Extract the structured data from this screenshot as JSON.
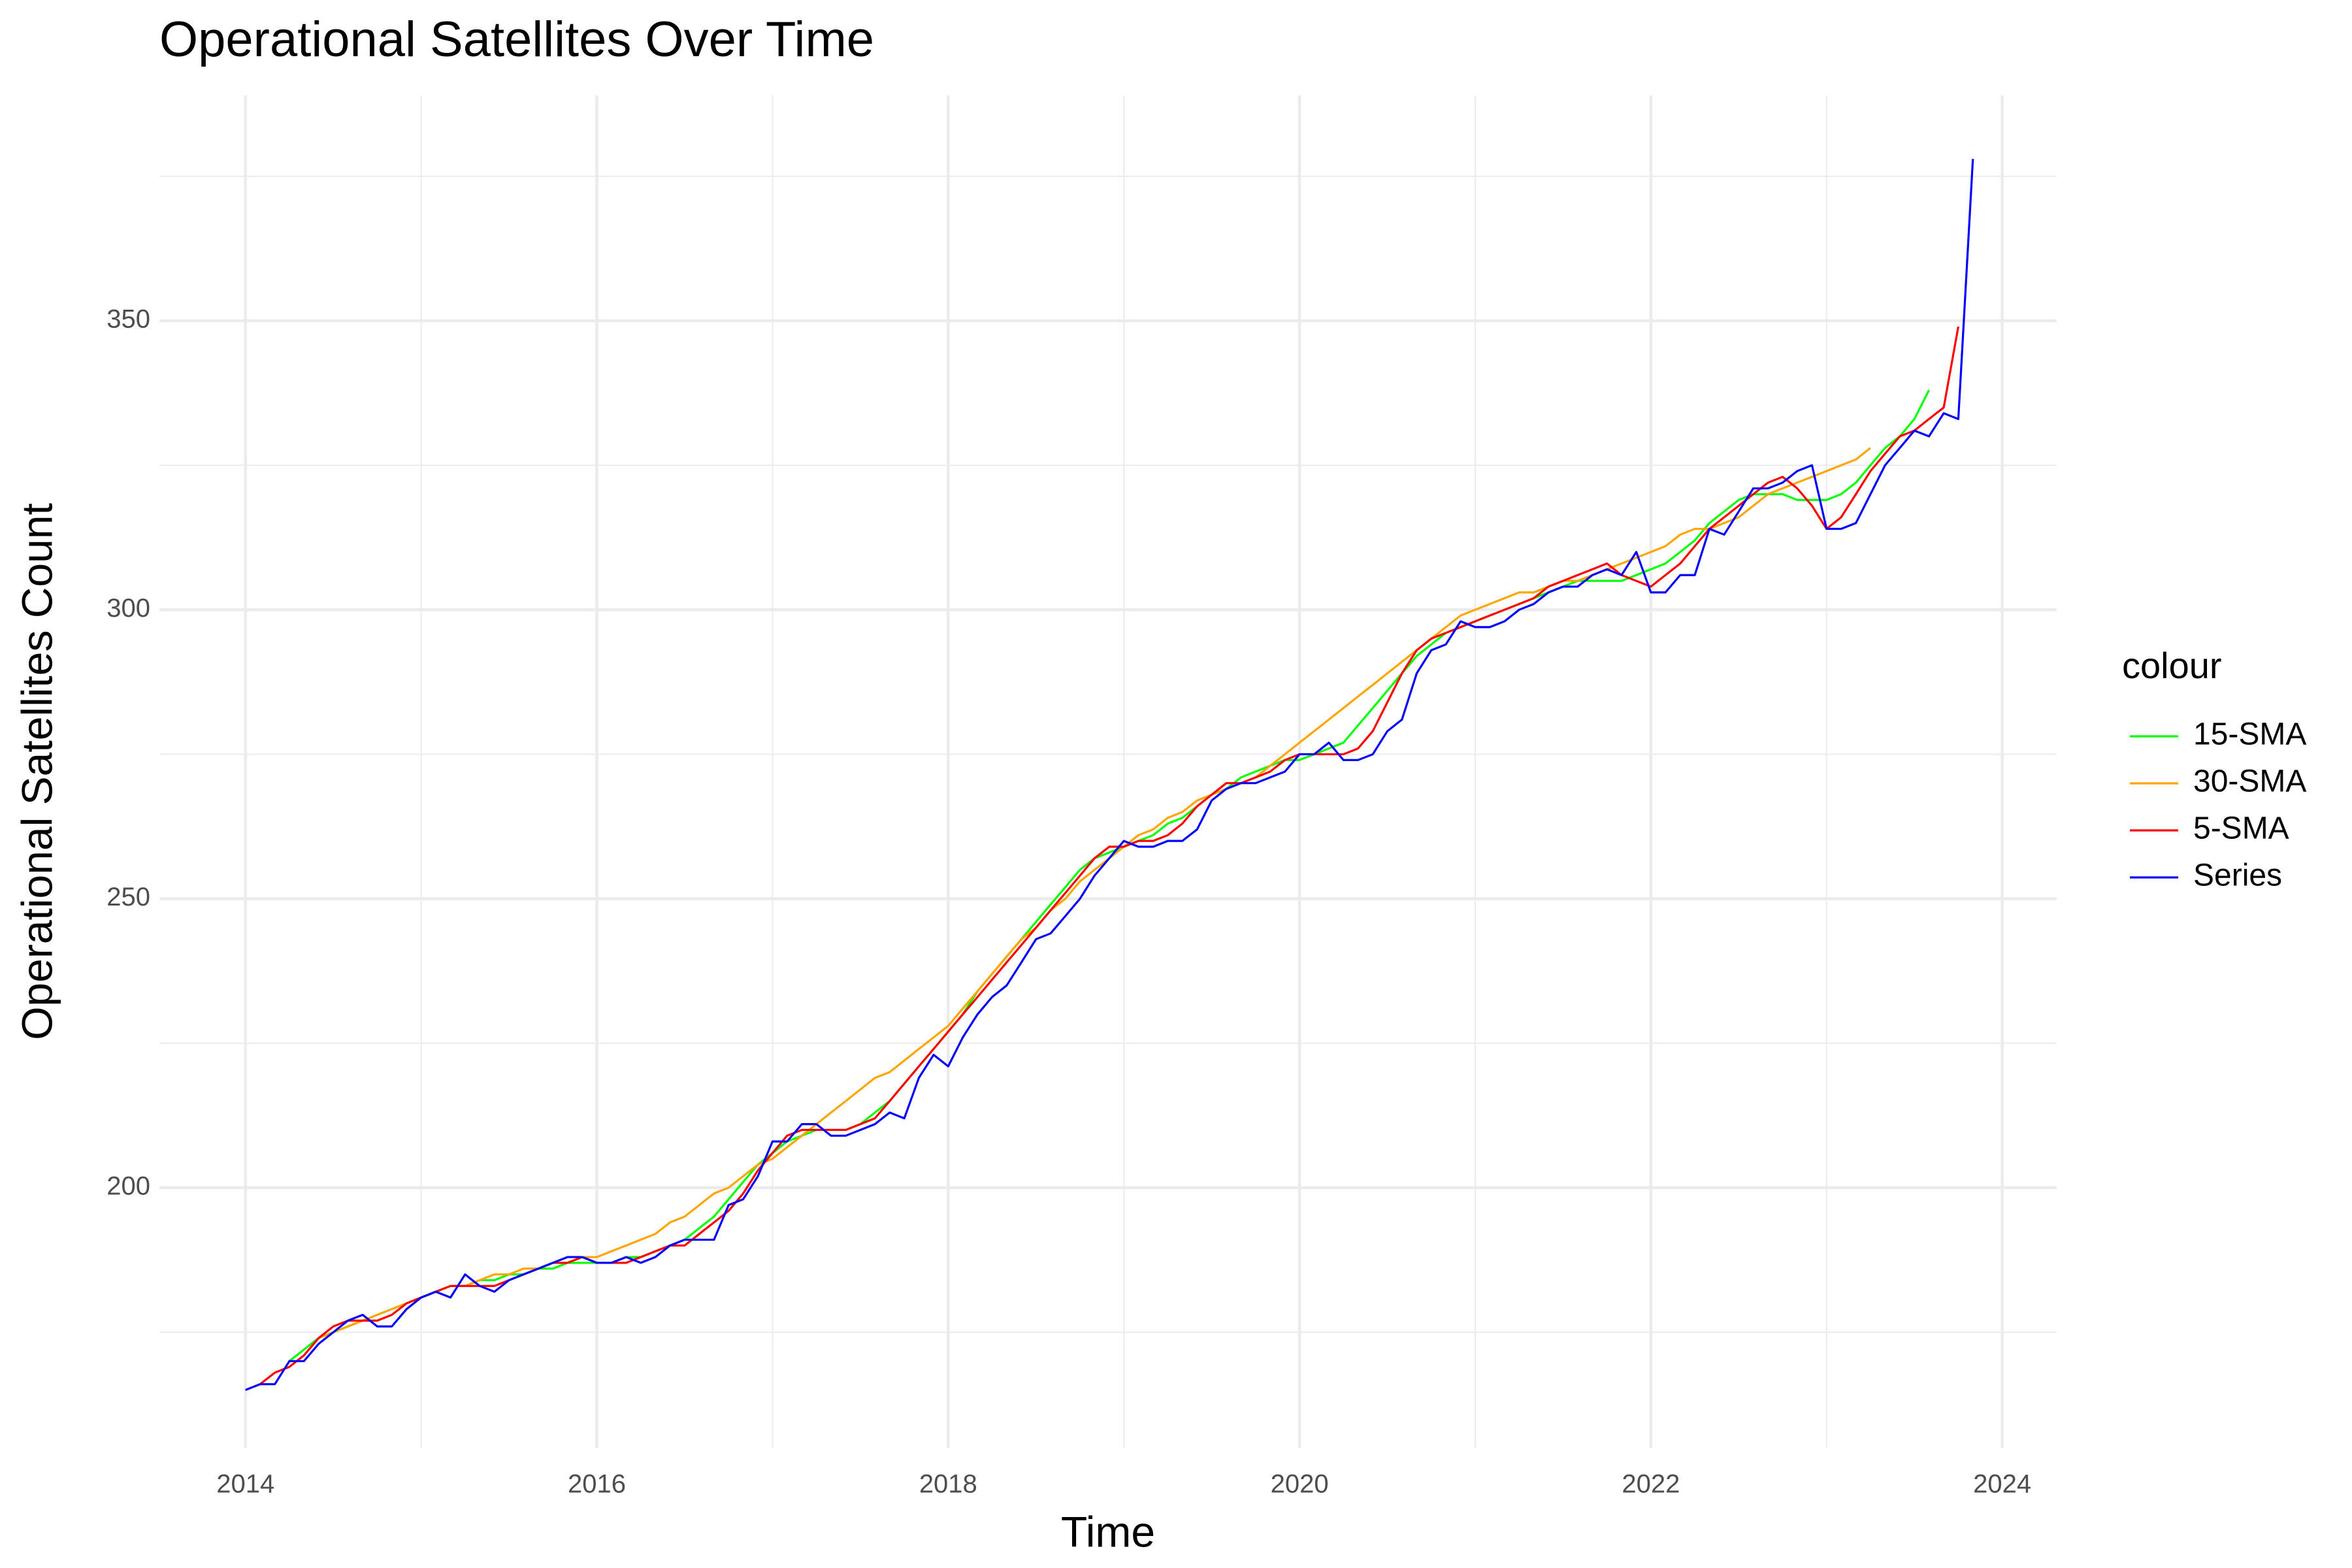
{
  "chart_data": {
    "type": "line",
    "title": "Operational Satellites Over Time",
    "x_label": "Time",
    "y_label": "Operational Satellites Count",
    "legend_title": "colour",
    "legend_position": "right",
    "grid": true,
    "xlim": [
      2013.51,
      2024.31
    ],
    "xticks": [
      2014,
      2016,
      2018,
      2020,
      2022,
      2024
    ],
    "minor_xticks": [
      2015,
      2017,
      2019,
      2021,
      2023
    ],
    "ylim": [
      155,
      389
    ],
    "yticks": [
      200,
      250,
      300,
      350
    ],
    "minor_yticks": [
      175,
      225,
      275,
      325,
      375
    ],
    "x": [
      2014,
      2014.083,
      2014.167,
      2014.25,
      2014.333,
      2014.417,
      2014.5,
      2014.583,
      2014.667,
      2014.75,
      2014.833,
      2014.917,
      2015,
      2015.083,
      2015.167,
      2015.25,
      2015.333,
      2015.417,
      2015.5,
      2015.583,
      2015.667,
      2015.75,
      2015.833,
      2015.917,
      2016,
      2016.083,
      2016.167,
      2016.25,
      2016.333,
      2016.417,
      2016.5,
      2016.583,
      2016.667,
      2016.75,
      2016.833,
      2016.917,
      2017,
      2017.083,
      2017.167,
      2017.25,
      2017.333,
      2017.417,
      2017.5,
      2017.583,
      2017.667,
      2017.75,
      2017.833,
      2017.917,
      2018,
      2018.083,
      2018.167,
      2018.25,
      2018.333,
      2018.417,
      2018.5,
      2018.583,
      2018.667,
      2018.75,
      2018.833,
      2018.917,
      2019,
      2019.083,
      2019.167,
      2019.25,
      2019.333,
      2019.417,
      2019.5,
      2019.583,
      2019.667,
      2019.75,
      2019.833,
      2019.917,
      2020,
      2020.083,
      2020.167,
      2020.25,
      2020.333,
      2020.417,
      2020.5,
      2020.583,
      2020.667,
      2020.75,
      2020.833,
      2020.917,
      2021,
      2021.083,
      2021.167,
      2021.25,
      2021.333,
      2021.417,
      2021.5,
      2021.583,
      2021.667,
      2021.75,
      2021.833,
      2021.917,
      2022,
      2022.083,
      2022.167,
      2022.25,
      2022.333,
      2022.417,
      2022.5,
      2022.583,
      2022.667,
      2022.75,
      2022.833,
      2022.917,
      2023,
      2023.083,
      2023.167,
      2023.25,
      2023.333,
      2023.417,
      2023.5,
      2023.583,
      2023.667,
      2023.75,
      2023.833
    ],
    "series": [
      {
        "name": "15-SMA",
        "color": "#00ff00",
        "values": [
          null,
          null,
          null,
          170,
          172,
          174,
          175,
          176,
          177,
          178,
          179,
          180,
          181,
          182,
          183,
          183,
          184,
          184,
          185,
          185,
          186,
          186,
          187,
          187,
          187,
          187,
          188,
          188,
          189,
          190,
          191,
          193,
          195,
          198,
          201,
          204,
          206,
          208,
          209,
          210,
          210,
          210,
          211,
          213,
          215,
          218,
          221,
          224,
          227,
          230,
          234,
          237,
          240,
          243,
          246,
          249,
          252,
          255,
          257,
          258,
          259,
          260,
          261,
          263,
          264,
          266,
          268,
          269,
          271,
          272,
          273,
          274,
          274,
          275,
          276,
          277,
          280,
          283,
          286,
          289,
          292,
          294,
          296,
          297,
          298,
          299,
          300,
          301,
          302,
          303,
          304,
          305,
          305,
          305,
          305,
          306,
          307,
          308,
          310,
          312,
          315,
          317,
          319,
          320,
          320,
          320,
          319,
          319,
          319,
          320,
          322,
          325,
          328,
          330,
          333,
          338,
          null,
          null,
          null
        ]
      },
      {
        "name": "30-SMA",
        "color": "#ffa500",
        "values": [
          null,
          null,
          null,
          null,
          null,
          174,
          175,
          176,
          177,
          178,
          179,
          180,
          181,
          182,
          183,
          183,
          184,
          185,
          185,
          186,
          186,
          187,
          187,
          188,
          188,
          189,
          190,
          191,
          192,
          194,
          195,
          197,
          199,
          200,
          202,
          204,
          205,
          207,
          209,
          211,
          213,
          215,
          217,
          219,
          220,
          222,
          224,
          226,
          228,
          231,
          234,
          237,
          240,
          243,
          245,
          248,
          250,
          253,
          255,
          257,
          259,
          261,
          262,
          264,
          265,
          267,
          268,
          269,
          270,
          271,
          273,
          275,
          277,
          279,
          281,
          283,
          285,
          287,
          289,
          291,
          293,
          295,
          297,
          299,
          300,
          301,
          302,
          303,
          303,
          304,
          305,
          305,
          306,
          307,
          308,
          309,
          310,
          311,
          313,
          314,
          314,
          315,
          316,
          318,
          320,
          321,
          322,
          323,
          324,
          325,
          326,
          328,
          null,
          null,
          null,
          null,
          null,
          null,
          null
        ]
      },
      {
        "name": "5-SMA",
        "color": "#ff0000",
        "values": [
          165,
          166,
          168,
          169,
          171,
          174,
          176,
          177,
          177,
          177,
          178,
          180,
          181,
          182,
          183,
          183,
          183,
          183,
          184,
          185,
          186,
          187,
          187,
          188,
          187,
          187,
          187,
          188,
          189,
          190,
          190,
          192,
          194,
          196,
          199,
          203,
          206,
          209,
          210,
          210,
          210,
          210,
          211,
          212,
          215,
          218,
          221,
          224,
          227,
          230,
          233,
          236,
          239,
          242,
          245,
          248,
          251,
          254,
          257,
          259,
          259,
          260,
          260,
          261,
          263,
          266,
          268,
          270,
          270,
          271,
          272,
          274,
          275,
          275,
          275,
          275,
          276,
          279,
          284,
          289,
          293,
          295,
          296,
          297,
          298,
          299,
          300,
          301,
          302,
          304,
          305,
          306,
          307,
          308,
          306,
          305,
          304,
          306,
          308,
          311,
          314,
          316,
          318,
          320,
          322,
          323,
          321,
          318,
          314,
          316,
          320,
          324,
          327,
          330,
          331,
          333,
          335,
          349,
          null
        ]
      },
      {
        "name": "Series",
        "color": "#0000ff",
        "values": [
          165,
          166,
          166,
          170,
          170,
          173,
          175,
          177,
          178,
          176,
          176,
          179,
          181,
          182,
          181,
          185,
          183,
          182,
          184,
          185,
          186,
          187,
          188,
          188,
          187,
          187,
          188,
          187,
          188,
          190,
          191,
          191,
          191,
          197,
          198,
          202,
          208,
          208,
          211,
          211,
          209,
          209,
          210,
          211,
          213,
          212,
          219,
          223,
          221,
          226,
          230,
          233,
          235,
          239,
          243,
          244,
          247,
          250,
          254,
          257,
          260,
          259,
          259,
          260,
          260,
          262,
          267,
          269,
          270,
          270,
          271,
          272,
          275,
          275,
          277,
          274,
          274,
          275,
          279,
          281,
          289,
          293,
          294,
          298,
          297,
          297,
          298,
          300,
          301,
          303,
          304,
          304,
          306,
          307,
          306,
          310,
          303,
          303,
          306,
          306,
          314,
          313,
          317,
          321,
          321,
          322,
          324,
          325,
          314,
          314,
          315,
          320,
          325,
          328,
          331,
          330,
          334,
          333,
          378
        ]
      }
    ]
  }
}
